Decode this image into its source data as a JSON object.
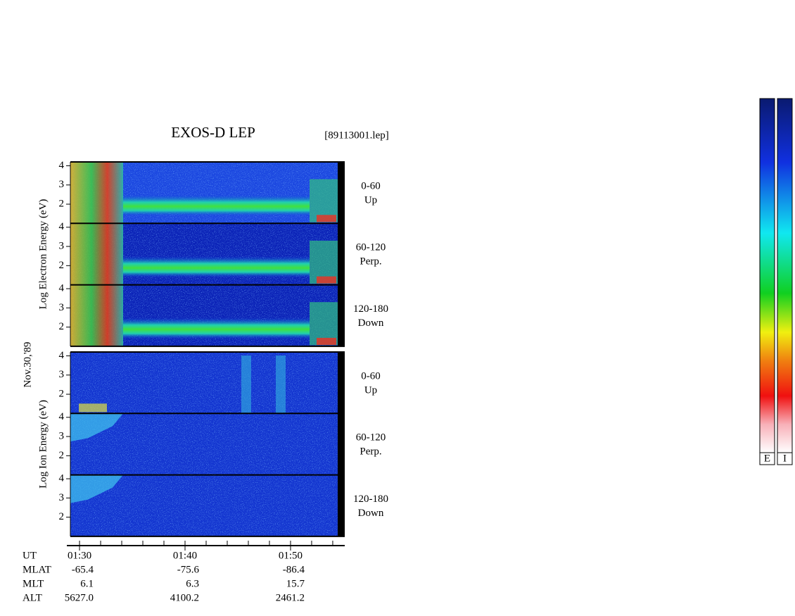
{
  "chart_data": {
    "type": "spectrogram",
    "title": "EXOS-D LEP",
    "file": "[89113001.lep]",
    "date": "Nov.30,'89",
    "groups": [
      {
        "ylabel": "Log Electron Energy (eV)",
        "panels": [
          {
            "channel": "0-60",
            "direction": "Up"
          },
          {
            "channel": "60-120",
            "direction": "Perp."
          },
          {
            "channel": "120-180",
            "direction": "Down"
          }
        ]
      },
      {
        "ylabel": "Log Ion Energy (eV)",
        "panels": [
          {
            "channel": "0-60",
            "direction": "Up"
          },
          {
            "channel": "60-120",
            "direction": "Perp."
          },
          {
            "channel": "120-180",
            "direction": "Down"
          }
        ]
      }
    ],
    "ylim": [
      1,
      4.2
    ],
    "yticks": [
      2,
      3,
      4
    ],
    "xlim": [
      89.13,
      114.47
    ],
    "xticks": [
      {
        "value": 90,
        "label": "01:30"
      },
      {
        "value": 100,
        "label": "01:40"
      },
      {
        "value": 110,
        "label": "01:50"
      }
    ],
    "xminorticks": [
      92,
      94,
      96,
      98,
      102,
      104,
      106,
      108,
      112,
      114
    ],
    "orbit_labels": [
      "UT",
      "MLAT",
      "MLT",
      "ALT"
    ],
    "orbit": [
      [
        "-65.4",
        "-75.6",
        "-86.4"
      ],
      [
        "6.1",
        "6.3",
        "15.7"
      ],
      [
        "5627.0",
        "4100.2",
        "2461.2"
      ]
    ],
    "colorbars": [
      "E",
      "I"
    ]
  }
}
